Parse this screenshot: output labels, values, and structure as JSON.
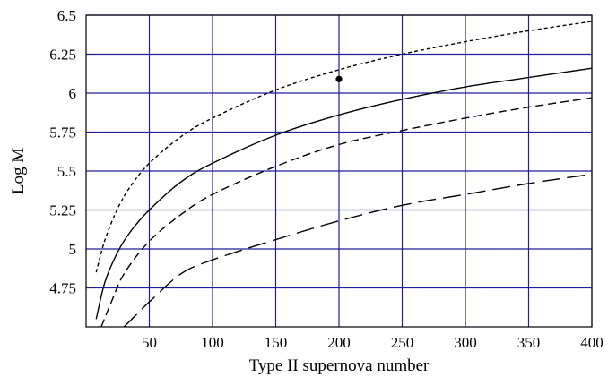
{
  "chart_data": {
    "type": "line",
    "title": "",
    "xlabel": "Type II supernova number",
    "ylabel": "Log M",
    "xlim": [
      0,
      400
    ],
    "ylim": [
      4.5,
      6.5
    ],
    "grid": true,
    "grid_color": "#1f1f9a",
    "x_ticks": [
      50,
      100,
      150,
      200,
      250,
      300,
      350,
      400
    ],
    "x_tick_labels": [
      "50",
      "100",
      "150",
      "200",
      "250",
      "300",
      "350",
      "400"
    ],
    "y_ticks": [
      4.75,
      5,
      5.25,
      5.5,
      5.75,
      6,
      6.25,
      6.5
    ],
    "y_tick_labels": [
      "4.75",
      "5",
      "5.25",
      "5.5",
      "5.75",
      "6",
      "6.25",
      "6.5"
    ],
    "series": [
      {
        "style": "short-dash",
        "x": [
          8,
          15,
          25,
          35,
          50,
          75,
          100,
          150,
          200,
          250,
          300,
          350,
          400
        ],
        "y": [
          4.85,
          5.06,
          5.26,
          5.4,
          5.55,
          5.72,
          5.84,
          6.02,
          6.15,
          6.25,
          6.33,
          6.4,
          6.46
        ]
      },
      {
        "style": "solid",
        "x": [
          8,
          15,
          25,
          35,
          50,
          75,
          100,
          150,
          200,
          250,
          300,
          350,
          400
        ],
        "y": [
          4.55,
          4.79,
          4.98,
          5.11,
          5.25,
          5.43,
          5.55,
          5.73,
          5.86,
          5.96,
          6.04,
          6.1,
          6.16
        ]
      },
      {
        "style": "medium-dash",
        "x": [
          12,
          20,
          30,
          50,
          75,
          100,
          150,
          200,
          250,
          300,
          350,
          400
        ],
        "y": [
          4.5,
          4.66,
          4.84,
          5.05,
          5.22,
          5.35,
          5.53,
          5.67,
          5.76,
          5.84,
          5.91,
          5.97
        ]
      },
      {
        "style": "long-dash",
        "x": [
          30,
          40,
          50,
          75,
          100,
          150,
          200,
          250,
          300,
          350,
          400
        ],
        "y": [
          4.5,
          4.58,
          4.66,
          4.84,
          4.93,
          5.06,
          5.18,
          5.28,
          5.35,
          5.42,
          5.48
        ]
      }
    ],
    "points": [
      {
        "x": 200,
        "y": 6.09
      }
    ]
  }
}
